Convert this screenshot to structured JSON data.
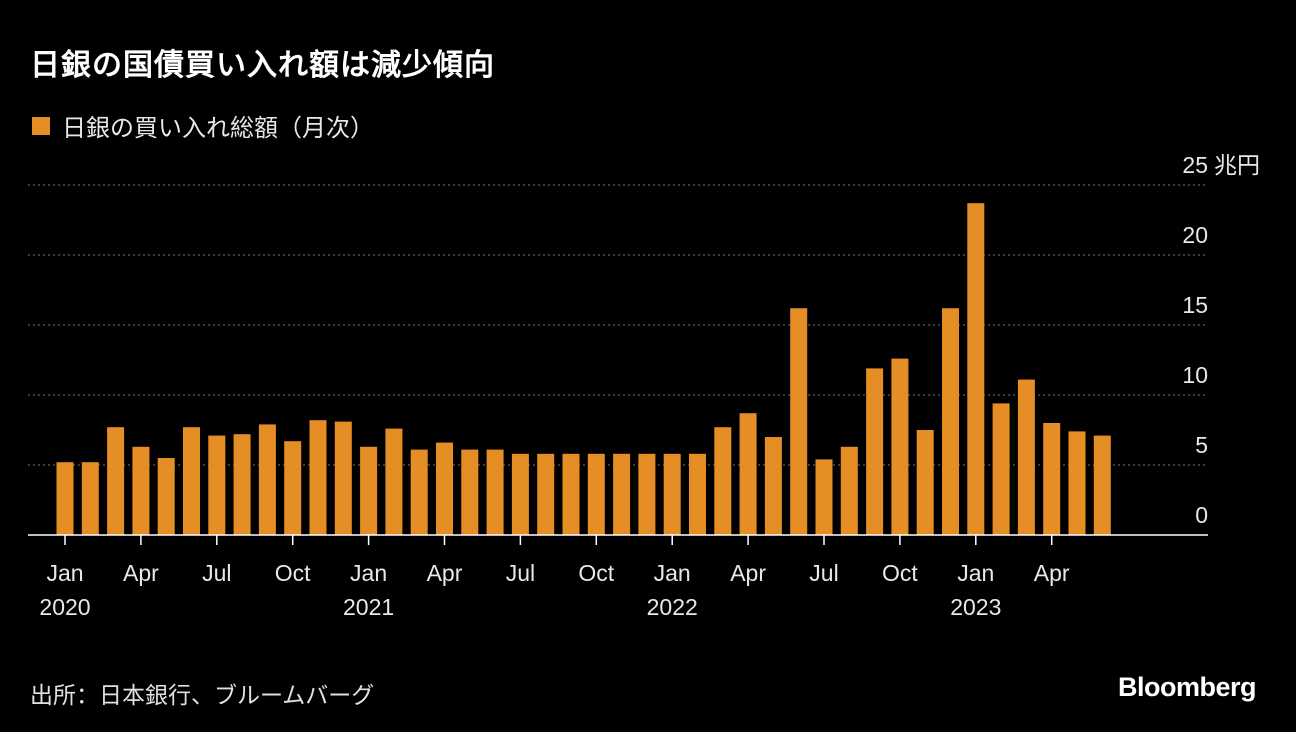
{
  "title": "日銀の国債買い入れ額は減少傾向",
  "legend": {
    "label": "日銀の買い入れ総額（月次）"
  },
  "source": "出所：日本銀行、ブルームバーグ",
  "brand": "Bloomberg",
  "colors": {
    "bar": "#E48E25",
    "background": "#000000",
    "grid": "#777777",
    "axis": "#ffffff",
    "text": "#ffffff"
  },
  "chart_data": {
    "type": "bar",
    "x": [
      "2020-01",
      "2020-02",
      "2020-03",
      "2020-04",
      "2020-05",
      "2020-06",
      "2020-07",
      "2020-08",
      "2020-09",
      "2020-10",
      "2020-11",
      "2020-12",
      "2021-01",
      "2021-02",
      "2021-03",
      "2021-04",
      "2021-05",
      "2021-06",
      "2021-07",
      "2021-08",
      "2021-09",
      "2021-10",
      "2021-11",
      "2021-12",
      "2022-01",
      "2022-02",
      "2022-03",
      "2022-04",
      "2022-05",
      "2022-06",
      "2022-07",
      "2022-08",
      "2022-09",
      "2022-10",
      "2022-11",
      "2022-12",
      "2023-01",
      "2023-02",
      "2023-03",
      "2023-04",
      "2023-05",
      "2023-06"
    ],
    "values": [
      5.2,
      5.2,
      7.7,
      6.3,
      5.5,
      7.7,
      7.1,
      7.2,
      7.9,
      6.7,
      8.2,
      8.1,
      6.3,
      7.6,
      6.1,
      6.6,
      6.1,
      6.1,
      5.8,
      5.8,
      5.8,
      5.8,
      5.8,
      5.8,
      5.8,
      5.8,
      7.7,
      8.7,
      7.0,
      16.2,
      5.4,
      6.3,
      11.9,
      12.6,
      7.5,
      16.2,
      23.7,
      9.4,
      11.1,
      8.0,
      7.4,
      7.1
    ],
    "y_ticks": [
      "0",
      "5",
      "10",
      "15",
      "20",
      "25"
    ],
    "y_tick_values": [
      0,
      5,
      10,
      15,
      20,
      25
    ],
    "y_unit": "兆円",
    "ylim": [
      0,
      25
    ],
    "x_tick_labels": [
      {
        "month": "Jan",
        "year": "2020",
        "index": 0
      },
      {
        "month": "Apr",
        "year": "",
        "index": 3
      },
      {
        "month": "Jul",
        "year": "",
        "index": 6
      },
      {
        "month": "Oct",
        "year": "",
        "index": 9
      },
      {
        "month": "Jan",
        "year": "2021",
        "index": 12
      },
      {
        "month": "Apr",
        "year": "",
        "index": 15
      },
      {
        "month": "Jul",
        "year": "",
        "index": 18
      },
      {
        "month": "Oct",
        "year": "",
        "index": 21
      },
      {
        "month": "Jan",
        "year": "2022",
        "index": 24
      },
      {
        "month": "Apr",
        "year": "",
        "index": 27
      },
      {
        "month": "Jul",
        "year": "",
        "index": 30
      },
      {
        "month": "Oct",
        "year": "",
        "index": 33
      },
      {
        "month": "Jan",
        "year": "2023",
        "index": 36
      },
      {
        "month": "Apr",
        "year": "",
        "index": 39
      }
    ],
    "grid": "dotted horizontal",
    "legend_position": "top-left"
  }
}
